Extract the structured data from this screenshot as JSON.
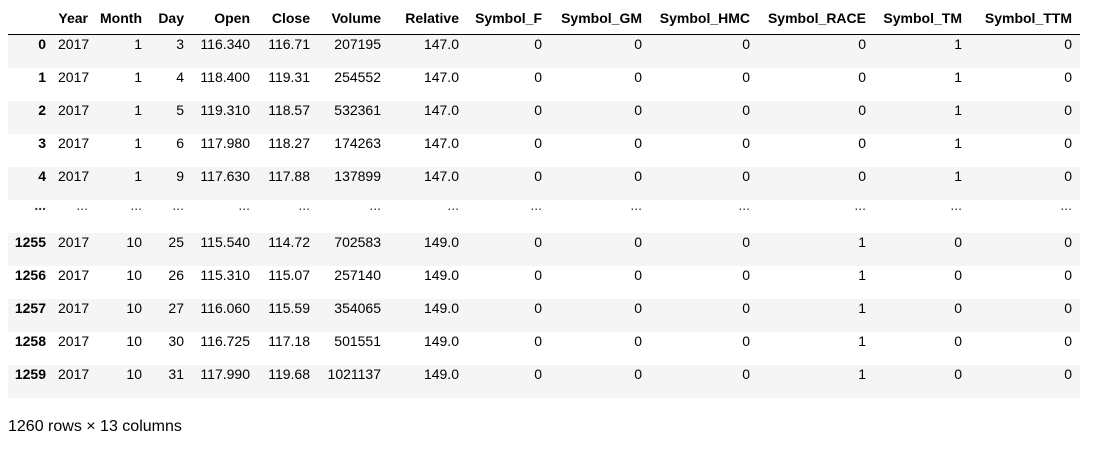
{
  "table": {
    "columns": [
      "",
      "Year",
      "Month",
      "Day",
      "Open",
      "Close",
      "Volume",
      "Relative",
      "Symbol_F",
      "Symbol_GM",
      "Symbol_HMC",
      "Symbol_RACE",
      "Symbol_TM",
      "Symbol_TTM"
    ],
    "rows": [
      [
        "0",
        "2017",
        "1",
        "3",
        "116.340",
        "116.71",
        "207195",
        "147.0",
        "0",
        "0",
        "0",
        "0",
        "1",
        "0"
      ],
      [
        "1",
        "2017",
        "1",
        "4",
        "118.400",
        "119.31",
        "254552",
        "147.0",
        "0",
        "0",
        "0",
        "0",
        "1",
        "0"
      ],
      [
        "2",
        "2017",
        "1",
        "5",
        "119.310",
        "118.57",
        "532361",
        "147.0",
        "0",
        "0",
        "0",
        "0",
        "1",
        "0"
      ],
      [
        "3",
        "2017",
        "1",
        "6",
        "117.980",
        "118.27",
        "174263",
        "147.0",
        "0",
        "0",
        "0",
        "0",
        "1",
        "0"
      ],
      [
        "4",
        "2017",
        "1",
        "9",
        "117.630",
        "117.88",
        "137899",
        "147.0",
        "0",
        "0",
        "0",
        "0",
        "1",
        "0"
      ],
      [
        "...",
        "...",
        "...",
        "...",
        "...",
        "...",
        "...",
        "...",
        "...",
        "...",
        "...",
        "...",
        "...",
        "..."
      ],
      [
        "1255",
        "2017",
        "10",
        "25",
        "115.540",
        "114.72",
        "702583",
        "149.0",
        "0",
        "0",
        "0",
        "1",
        "0",
        "0"
      ],
      [
        "1256",
        "2017",
        "10",
        "26",
        "115.310",
        "115.07",
        "257140",
        "149.0",
        "0",
        "0",
        "0",
        "1",
        "0",
        "0"
      ],
      [
        "1257",
        "2017",
        "10",
        "27",
        "116.060",
        "115.59",
        "354065",
        "149.0",
        "0",
        "0",
        "0",
        "1",
        "0",
        "0"
      ],
      [
        "1258",
        "2017",
        "10",
        "30",
        "116.725",
        "117.18",
        "501551",
        "149.0",
        "0",
        "0",
        "0",
        "1",
        "0",
        "0"
      ],
      [
        "1259",
        "2017",
        "10",
        "31",
        "117.990",
        "119.68",
        "1021137",
        "149.0",
        "0",
        "0",
        "0",
        "1",
        "0",
        "0"
      ]
    ]
  },
  "footer": {
    "summary": "1260 rows × 13 columns"
  },
  "colors": {
    "stripe": "#f5f5f5",
    "header_border": "#000000",
    "text": "#000000"
  }
}
